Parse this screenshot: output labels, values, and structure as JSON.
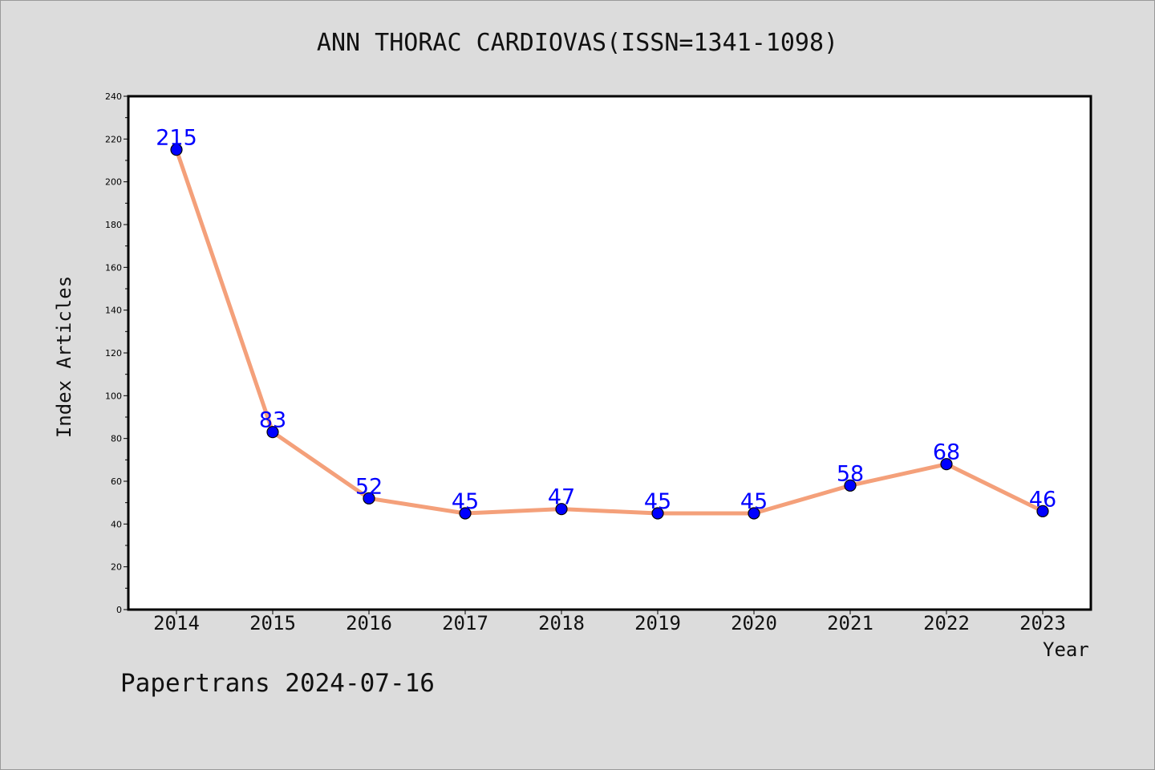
{
  "chart_data": {
    "type": "line",
    "title": "ANN THORAC CARDIOVAS(ISSN=1341-1098)",
    "xlabel": "Year",
    "ylabel": "Index Articles",
    "ylim": [
      0,
      240
    ],
    "y_ticks": [
      0,
      20,
      40,
      60,
      80,
      100,
      120,
      140,
      160,
      180,
      200,
      220,
      240
    ],
    "categories": [
      "2014",
      "2015",
      "2016",
      "2017",
      "2018",
      "2019",
      "2020",
      "2021",
      "2022",
      "2023"
    ],
    "series": [
      {
        "values": [
          215,
          83,
          52,
          45,
          47,
          45,
          45,
          58,
          68,
          46
        ]
      }
    ],
    "data_labels": true,
    "grid": false,
    "colors": {
      "line": "#f4a07a",
      "marker": "#0000ff",
      "label": "#0000ff",
      "plot_bg": "#ffffff",
      "page_bg": "#dcdcdc"
    }
  },
  "footer": {
    "note": "Papertrans 2024-07-16"
  }
}
